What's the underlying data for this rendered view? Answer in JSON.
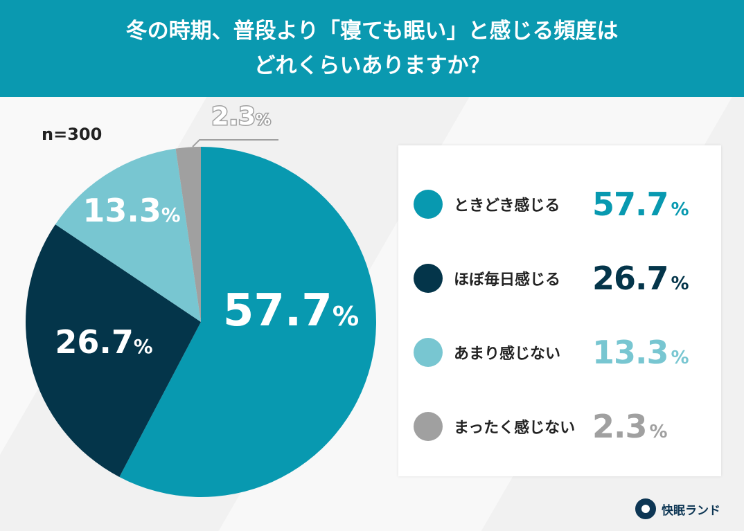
{
  "header": {
    "title_line1": "冬の時期、普段より「寝ても眠い」と感じる頻度は",
    "title_line2": "どれくらいありますか？"
  },
  "sample": "n=300",
  "chart_data": {
    "type": "pie",
    "title": "冬の時期、普段より「寝ても眠い」と感じる頻度はどれくらいありますか？",
    "categories": [
      "ときどき感じる",
      "ほぼ毎日感じる",
      "あまり感じない",
      "まったく感じない"
    ],
    "values": [
      57.7,
      26.7,
      13.3,
      2.3
    ],
    "labels": [
      "57.7",
      "26.7",
      "13.3",
      "2.3"
    ],
    "unit": "%",
    "colors": [
      "#0899b0",
      "#04354a",
      "#78c6d1",
      "#a0a0a0"
    ],
    "legend": "right"
  },
  "logo": {
    "text": "快眠ランド"
  }
}
